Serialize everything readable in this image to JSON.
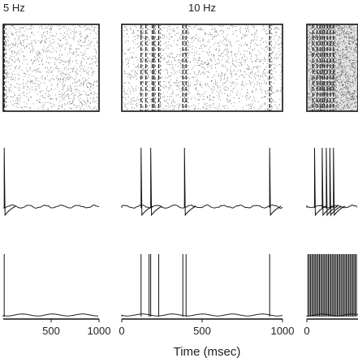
{
  "chart_data": {
    "type": "line",
    "xlabel": "Time (msec)",
    "xlim": [
      0,
      1000
    ],
    "x_ticks": [
      0,
      500,
      1000
    ],
    "columns": [
      {
        "title": "5 Hz",
        "x_tick_labels": [
          "500",
          "1000"
        ],
        "raster_density": "low",
        "raster_bands": [
          10
        ],
        "voltage_spikes": [
          10
        ],
        "bottom_spikes": [
          10
        ]
      },
      {
        "title": "10 Hz",
        "x_tick_labels": [
          "0",
          "500",
          "1000"
        ],
        "raster_density": "medium",
        "raster_bands": [
          120,
          150,
          190,
          200,
          230,
          380,
          400,
          920
        ],
        "voltage_spikes": [
          120,
          180,
          390,
          920
        ],
        "bottom_spikes": [
          120,
          170,
          180,
          230,
          380,
          400,
          920
        ]
      },
      {
        "title": "",
        "x_tick_labels": [
          "0"
        ],
        "raster_density": "high",
        "raster_bands": [
          120,
          200,
          260,
          300,
          340,
          400,
          460,
          520
        ],
        "voltage_spikes": [
          150,
          300,
          380,
          450,
          520
        ],
        "bottom_spikes": [
          20,
          45,
          70,
          95,
          120,
          145,
          170,
          195,
          220,
          245,
          270,
          295,
          320,
          345,
          370,
          395,
          420,
          445,
          470,
          495,
          520,
          545,
          570,
          595,
          620,
          645,
          670,
          695,
          720,
          745,
          770,
          795,
          820,
          845,
          870,
          895,
          920,
          945,
          970
        ]
      }
    ]
  }
}
